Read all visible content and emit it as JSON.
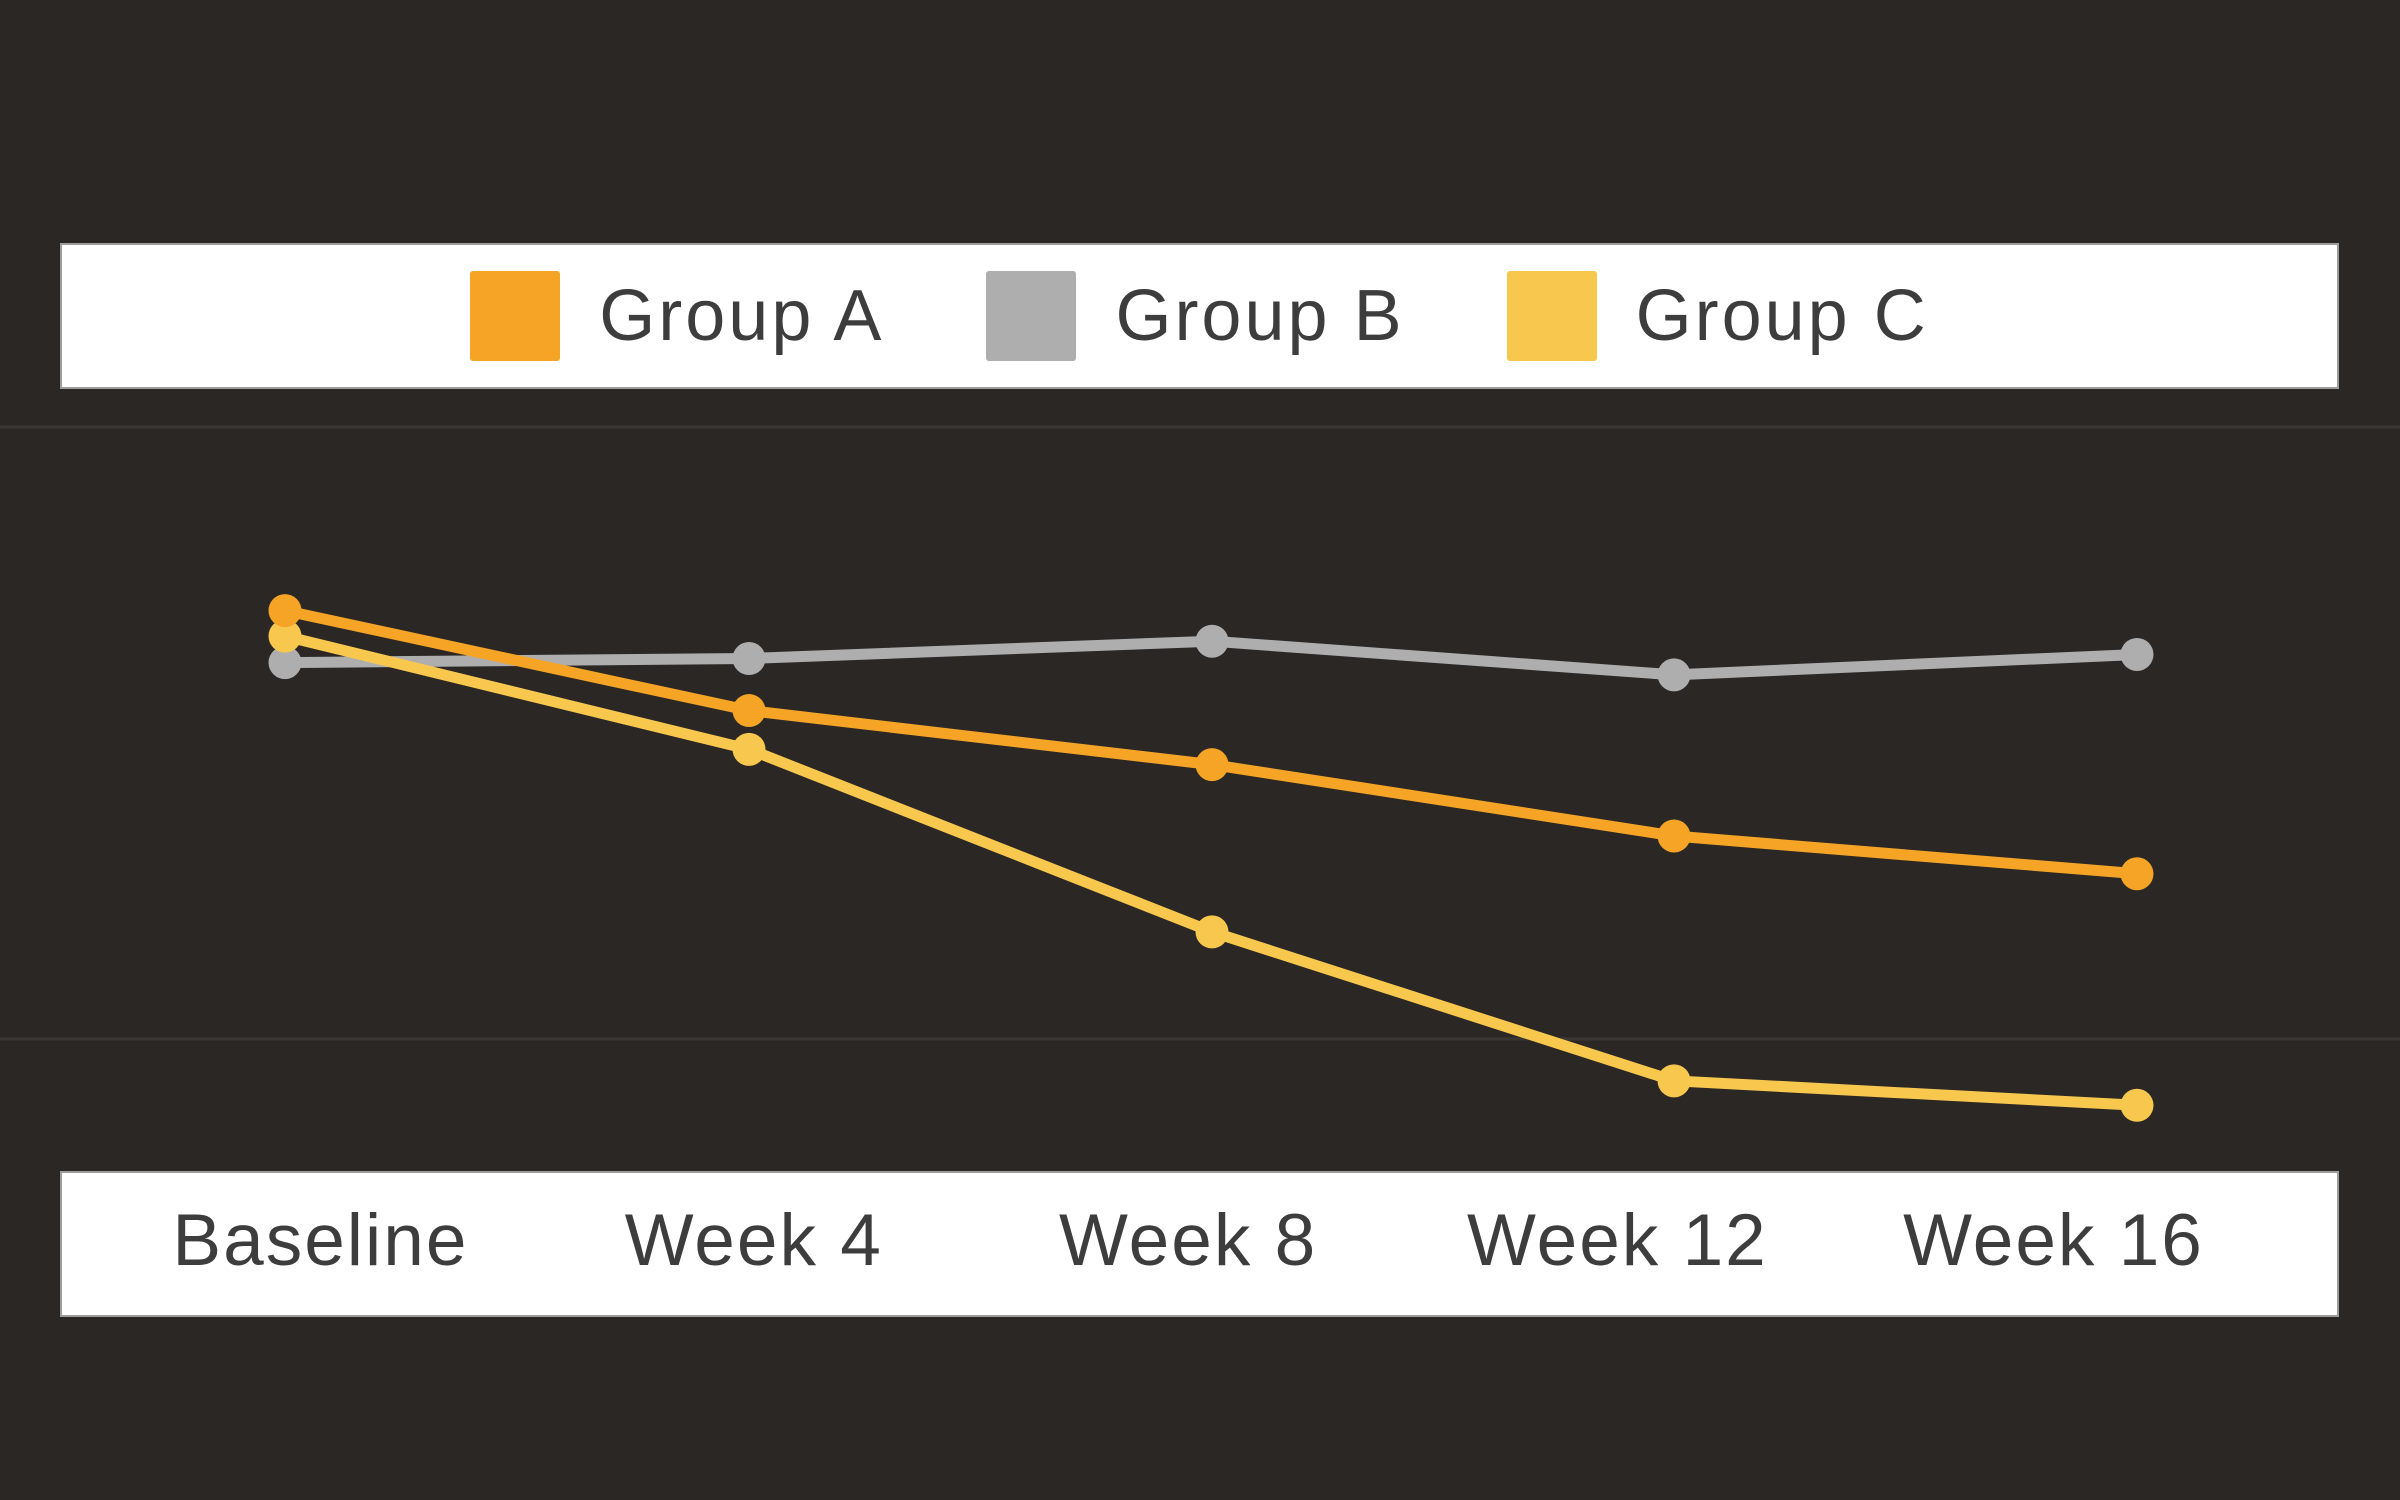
{
  "colors": {
    "background": "#2A2725",
    "panel": "#FFFFFF",
    "panel_border": "#9C9C9C",
    "gridline": "#3A3733",
    "text": "#3D3D3D",
    "group_a": "#F5A426",
    "group_b": "#AEAEAE",
    "group_c": "#F8C84E"
  },
  "legend": {
    "items": [
      {
        "label": "Group A",
        "color": "#F5A426"
      },
      {
        "label": "Group B",
        "color": "#AEAEAE"
      },
      {
        "label": "Group C",
        "color": "#F8C84E"
      }
    ]
  },
  "x_axis": {
    "labels": [
      "Baseline",
      "Week 4",
      "Week 8",
      "Week 12",
      "Week 16"
    ]
  },
  "chart_data": {
    "type": "line",
    "title": "",
    "xlabel": "",
    "ylabel": "",
    "categories": [
      "Baseline",
      "Week 4",
      "Week 8",
      "Week 12",
      "Week 16"
    ],
    "series": [
      {
        "name": "Group A",
        "color": "#F5A426",
        "values": [
          62.0,
          52.2,
          46.9,
          39.9,
          36.2
        ]
      },
      {
        "name": "Group B",
        "color": "#AEAEAE",
        "values": [
          56.9,
          57.3,
          59.0,
          55.7,
          57.7
        ]
      },
      {
        "name": "Group C",
        "color": "#F8C84E",
        "values": [
          59.5,
          48.4,
          30.5,
          15.9,
          13.5
        ]
      }
    ],
    "ylim": [
      0,
      100
    ],
    "y_gridlines": [
      80,
      20
    ],
    "y_tick_labels_visible": false,
    "grid": "horizontal-only",
    "legend_position": "top",
    "marker": "circle",
    "background": "dark"
  }
}
